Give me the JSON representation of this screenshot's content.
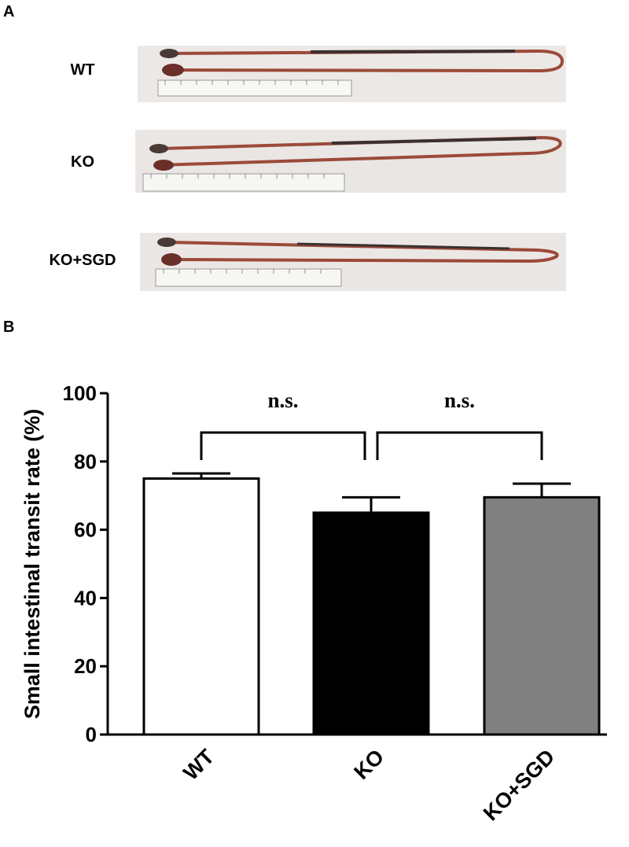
{
  "panel_a": {
    "letter": "A",
    "rows": [
      {
        "label": "WT"
      },
      {
        "label": "KO"
      },
      {
        "label": "KO+SGD"
      }
    ]
  },
  "panel_b": {
    "letter": "B"
  },
  "chart_data": {
    "type": "bar",
    "categories": [
      "WT",
      "KO",
      "KO+SGD"
    ],
    "values": [
      75,
      65,
      69.5
    ],
    "errors": [
      1.5,
      4.5,
      4
    ],
    "bar_colors": [
      "#ffffff",
      "#000000",
      "#808080"
    ],
    "ylabel": "Small intestinal transit rate (%)",
    "ylim": [
      0,
      100
    ],
    "yticks": [
      0,
      20,
      40,
      60,
      80,
      100
    ],
    "comparisons": [
      {
        "from": "WT",
        "to": "KO",
        "label": "n.s."
      },
      {
        "from": "KO",
        "to": "KO+SGD",
        "label": "n.s."
      }
    ]
  }
}
